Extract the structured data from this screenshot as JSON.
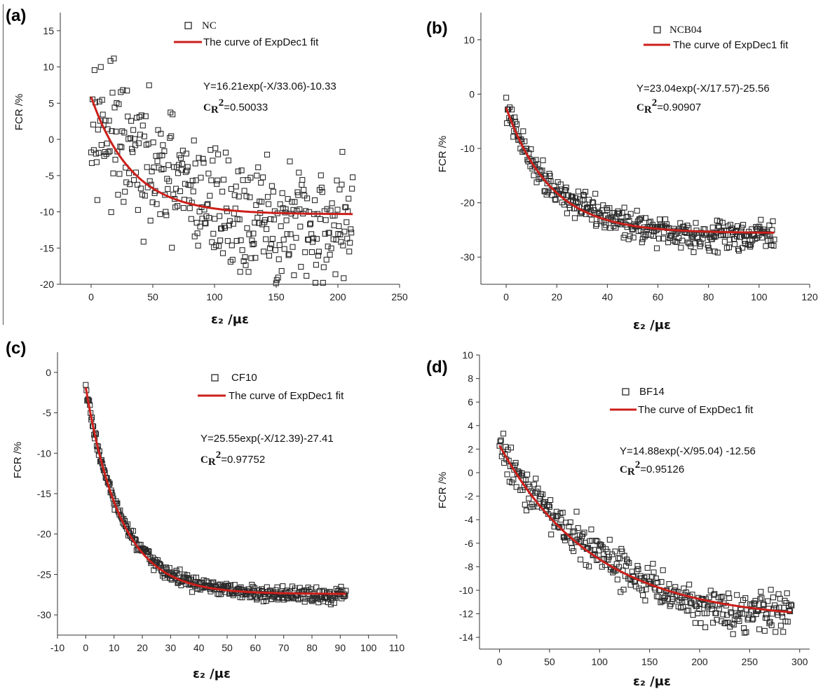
{
  "accent": "#cc1f1a",
  "marker_color": "#2a2a2a",
  "chart_data": [
    {
      "type": "scatter",
      "panel": "(a)",
      "xlabel": "ε₂ /με",
      "ylabel": "FCR /%",
      "xlim": [
        -25,
        250
      ],
      "ylim": [
        -20,
        17.5
      ],
      "xticks": [
        "0",
        "50",
        "100",
        "150",
        "200",
        "250"
      ],
      "yticks": [
        "15",
        "10",
        "5",
        "0",
        "-5",
        "-10",
        "-15",
        "-20"
      ],
      "legend_scatter": "NC",
      "legend_fit": "The curve of ExpDec1 fit",
      "equation": "Y=16.21exp(-X/33.06)-10.33",
      "r2_label": "C",
      "r2_sub": "R",
      "r2_sup": "2",
      "r2_value": "=0.50033",
      "fit": {
        "A": 16.21,
        "t": 33.06,
        "y0": -10.33,
        "xmax": 212
      },
      "series_noise": "high",
      "x_range": [
        0,
        212
      ]
    },
    {
      "type": "scatter",
      "panel": "(b)",
      "xlabel": "ε₂ /με",
      "ylabel": "FCR /%",
      "xlim": [
        -10,
        120
      ],
      "ylim": [
        -35,
        15
      ],
      "xticks": [
        "0",
        "20",
        "40",
        "60",
        "80",
        "100",
        "120"
      ],
      "yticks": [
        "10",
        "0",
        "-10",
        "-20",
        "-30"
      ],
      "legend_scatter": "NCB04",
      "legend_fit": "The curve of ExpDec1 fit",
      "equation": "Y=23.04exp(-X/17.57)-25.56",
      "r2_label": "C",
      "r2_sub": "R",
      "r2_sup": "2",
      "r2_value": "=0.90907",
      "fit": {
        "A": 23.04,
        "t": 17.57,
        "y0": -25.56,
        "xmax": 106
      },
      "series_noise": "low",
      "x_range": [
        0,
        106
      ]
    },
    {
      "type": "scatter",
      "panel": "(c)",
      "xlabel": "ε₂ /με",
      "ylabel": "FCR /%",
      "xlim": [
        -10,
        110
      ],
      "ylim": [
        -32.5,
        2.5
      ],
      "xticks": [
        "-10",
        "0",
        "10",
        "20",
        "30",
        "40",
        "50",
        "60",
        "70",
        "80",
        "90",
        "100",
        "110"
      ],
      "yticks": [
        "0",
        "-5",
        "-10",
        "-15",
        "-20",
        "-25",
        "-30"
      ],
      "legend_scatter": "CF10",
      "legend_fit": "The curve of ExpDec1 fit",
      "equation": "Y=25.55exp(-X/12.39)-27.41",
      "r2_label": "C",
      "r2_sub": "R",
      "r2_sup": "2",
      "r2_value": "=0.97752",
      "fit": {
        "A": 25.55,
        "t": 12.39,
        "y0": -27.41,
        "xmax": 92
      },
      "series_noise": "tiny",
      "x_range": [
        0,
        92
      ]
    },
    {
      "type": "scatter",
      "panel": "(d)",
      "xlabel": "ε₂ /με",
      "ylabel": "FCR /%",
      "xlim": [
        -20,
        310
      ],
      "ylim": [
        -15,
        10
      ],
      "xticks": [
        "0",
        "50",
        "100",
        "150",
        "200",
        "250",
        "300"
      ],
      "yticks": [
        "10",
        "8",
        "6",
        "4",
        "2",
        "0",
        "-2",
        "-4",
        "-6",
        "-8",
        "-10",
        "-12",
        "-14"
      ],
      "legend_scatter": "BF14",
      "legend_fit": "The curve of ExpDec1 fit",
      "equation": "Y=14.88exp(-X/95.04) -12.56",
      "r2_label": "C",
      "r2_sub": "R",
      "r2_sup": "2",
      "r2_value": "=0.95126",
      "fit": {
        "A": 14.88,
        "t": 95.04,
        "y0": -12.56,
        "xmax": 292
      },
      "series_noise": "medium",
      "x_range": [
        0,
        292
      ]
    }
  ]
}
